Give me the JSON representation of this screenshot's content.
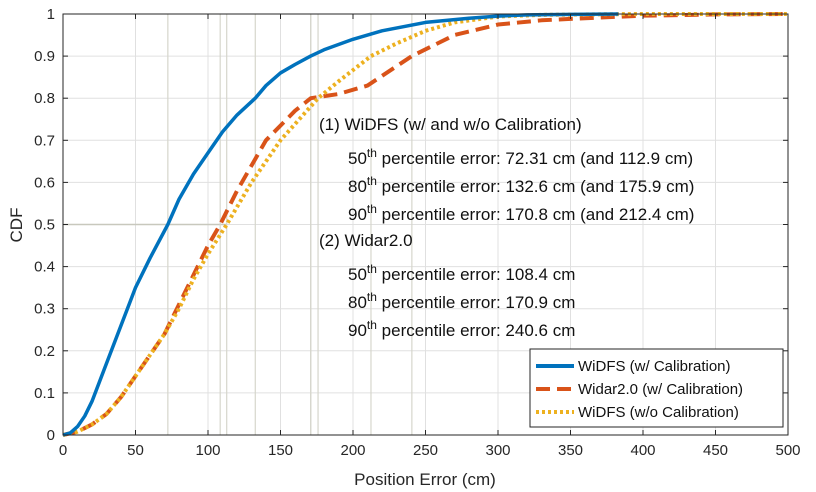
{
  "chart_data": {
    "type": "line",
    "xlabel": "Position Error (cm)",
    "ylabel": "CDF",
    "xlim": [
      0,
      500
    ],
    "ylim": [
      0,
      1
    ],
    "xticks": [
      "0",
      "50",
      "100",
      "150",
      "200",
      "250",
      "300",
      "350",
      "400",
      "450",
      "500"
    ],
    "yticks": [
      "0",
      "0.1",
      "0.2",
      "0.3",
      "0.4",
      "0.5",
      "0.6",
      "0.7",
      "0.8",
      "0.9",
      "1"
    ],
    "grid": true,
    "legend_position": "bottom-right",
    "series": [
      {
        "name": "WiDFS (w/ Calibration)",
        "color": "#0072BD",
        "style": "solid",
        "x": [
          0,
          5,
          10,
          15,
          20,
          30,
          40,
          50,
          60,
          72.31,
          80,
          90,
          100,
          110,
          120,
          132.6,
          140,
          150,
          160,
          170.8,
          180,
          200,
          220,
          250,
          280,
          300,
          320,
          350,
          383
        ],
        "y": [
          0,
          0.005,
          0.02,
          0.045,
          0.08,
          0.17,
          0.26,
          0.35,
          0.42,
          0.5,
          0.56,
          0.62,
          0.67,
          0.72,
          0.76,
          0.8,
          0.83,
          0.86,
          0.88,
          0.9,
          0.915,
          0.94,
          0.96,
          0.98,
          0.99,
          0.995,
          0.998,
          0.999,
          1.0
        ]
      },
      {
        "name": "Widar2.0 (w/ Calibration)",
        "color": "#D95319",
        "style": "dashed",
        "x": [
          0,
          10,
          20,
          30,
          40,
          50,
          60,
          70,
          80,
          90,
          100,
          108.4,
          120,
          140,
          160,
          170.9,
          190,
          210,
          240.6,
          270,
          300,
          330,
          360,
          400,
          450,
          500
        ],
        "y": [
          0,
          0.008,
          0.025,
          0.05,
          0.09,
          0.14,
          0.19,
          0.24,
          0.31,
          0.38,
          0.45,
          0.5,
          0.58,
          0.7,
          0.77,
          0.8,
          0.81,
          0.83,
          0.9,
          0.95,
          0.975,
          0.985,
          0.99,
          0.996,
          0.999,
          1.0
        ]
      },
      {
        "name": "WiDFS (w/o Calibration)",
        "color": "#EDB120",
        "style": "dotted",
        "x": [
          0,
          10,
          20,
          30,
          40,
          50,
          60,
          70,
          80,
          90,
          100,
          112.9,
          130,
          150,
          175.9,
          190,
          212.4,
          230,
          250,
          270,
          300,
          330,
          360,
          400,
          450,
          500
        ],
        "y": [
          0,
          0.008,
          0.025,
          0.05,
          0.09,
          0.14,
          0.19,
          0.24,
          0.3,
          0.37,
          0.43,
          0.5,
          0.6,
          0.7,
          0.8,
          0.84,
          0.9,
          0.93,
          0.96,
          0.98,
          0.994,
          0.998,
          0.999,
          1.0,
          1.0,
          1.0
        ]
      }
    ],
    "reference_lines": {
      "y": 0.5,
      "x": [
        72.31,
        108.4,
        112.9,
        132.6,
        170.8,
        170.9,
        175.9,
        212.4,
        240.6
      ]
    }
  },
  "annotation": {
    "group1_title": "(1) WiDFS (w/ and w/o Calibration)",
    "group2_title": "(2) Widar2.0",
    "lines": [
      {
        "pct": "50",
        "sup": "th",
        "text": " percentile error: 72.31 cm (and 112.9 cm)"
      },
      {
        "pct": "80",
        "sup": "th",
        "text": " percentile error: 132.6 cm (and 175.9 cm)"
      },
      {
        "pct": "90",
        "sup": "th",
        "text": " percentile error: 170.8 cm (and 212.4 cm)"
      },
      {
        "pct": "50",
        "sup": "th",
        "text": " percentile error: 108.4 cm"
      },
      {
        "pct": "80",
        "sup": "th",
        "text": " percentile error: 170.9 cm"
      },
      {
        "pct": "90",
        "sup": "th",
        "text": " percentile error: 240.6 cm"
      }
    ]
  }
}
